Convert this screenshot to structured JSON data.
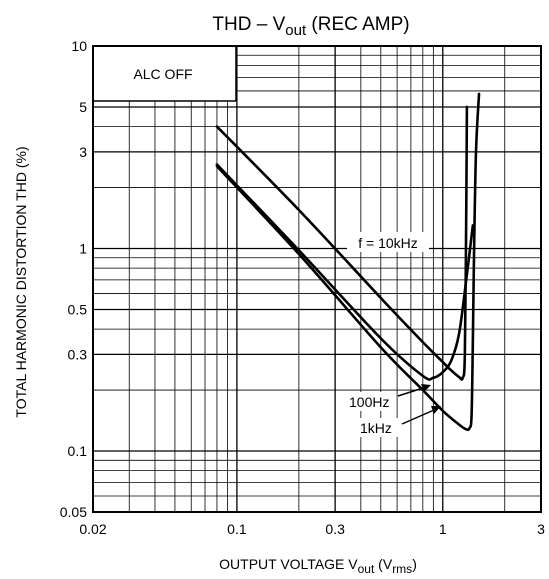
{
  "chart_data": {
    "type": "line",
    "title_main": "THD  –  V",
    "title_sub": "out",
    "title_tail": " (REC AMP)",
    "xlabel_main": "OUTPUT VOLTAGE   V",
    "xlabel_sub": "out",
    "xlabel_unit_open": "   (V",
    "xlabel_unit_sub": "rms",
    "xlabel_unit_close": ")",
    "ylabel": "TOTAL HARMONIC DISTORTION   THD   (%)",
    "x_scale": "log",
    "y_scale": "log",
    "xlim": [
      0.02,
      3
    ],
    "ylim": [
      0.05,
      10
    ],
    "grid": true,
    "x_ticks": [
      {
        "value": 0.02,
        "label": "0.02"
      },
      {
        "value": 0.1,
        "label": "0.1"
      },
      {
        "value": 0.3,
        "label": "0.3"
      },
      {
        "value": 1,
        "label": "1"
      },
      {
        "value": 3,
        "label": "3"
      }
    ],
    "y_ticks": [
      {
        "value": 0.05,
        "label": "0.05"
      },
      {
        "value": 0.1,
        "label": "0.1"
      },
      {
        "value": 0.3,
        "label": "0.3"
      },
      {
        "value": 0.5,
        "label": "0.5"
      },
      {
        "value": 1,
        "label": "1"
      },
      {
        "value": 3,
        "label": "3"
      },
      {
        "value": 5,
        "label": "5"
      },
      {
        "value": 10,
        "label": "10"
      }
    ],
    "condition_label": "ALC OFF",
    "series": [
      {
        "name": "f = 10kHz",
        "x": [
          0.08,
          0.2,
          0.5,
          0.8,
          1.0,
          1.1,
          1.2,
          1.25,
          1.28,
          1.3,
          1.31
        ],
        "y": [
          4.0,
          1.55,
          0.57,
          0.345,
          0.275,
          0.25,
          0.232,
          0.23,
          0.3,
          1.5,
          5.0
        ]
      },
      {
        "name": "100Hz",
        "x": [
          0.08,
          0.2,
          0.5,
          0.8,
          0.9,
          1.0,
          1.1,
          1.2,
          1.3,
          1.4
        ],
        "y": [
          2.6,
          0.98,
          0.36,
          0.235,
          0.23,
          0.245,
          0.28,
          0.38,
          0.7,
          1.3
        ]
      },
      {
        "name": "1kHz",
        "x": [
          0.08,
          0.2,
          0.5,
          0.8,
          1.0,
          1.2,
          1.3,
          1.35,
          1.38,
          1.4,
          1.42,
          1.45,
          1.5
        ],
        "y": [
          2.55,
          0.94,
          0.325,
          0.2,
          0.158,
          0.135,
          0.128,
          0.13,
          0.15,
          0.35,
          1.0,
          3.0,
          5.8
        ]
      }
    ],
    "annotations": [
      "f = 10kHz",
      "100Hz",
      "1kHz"
    ]
  }
}
